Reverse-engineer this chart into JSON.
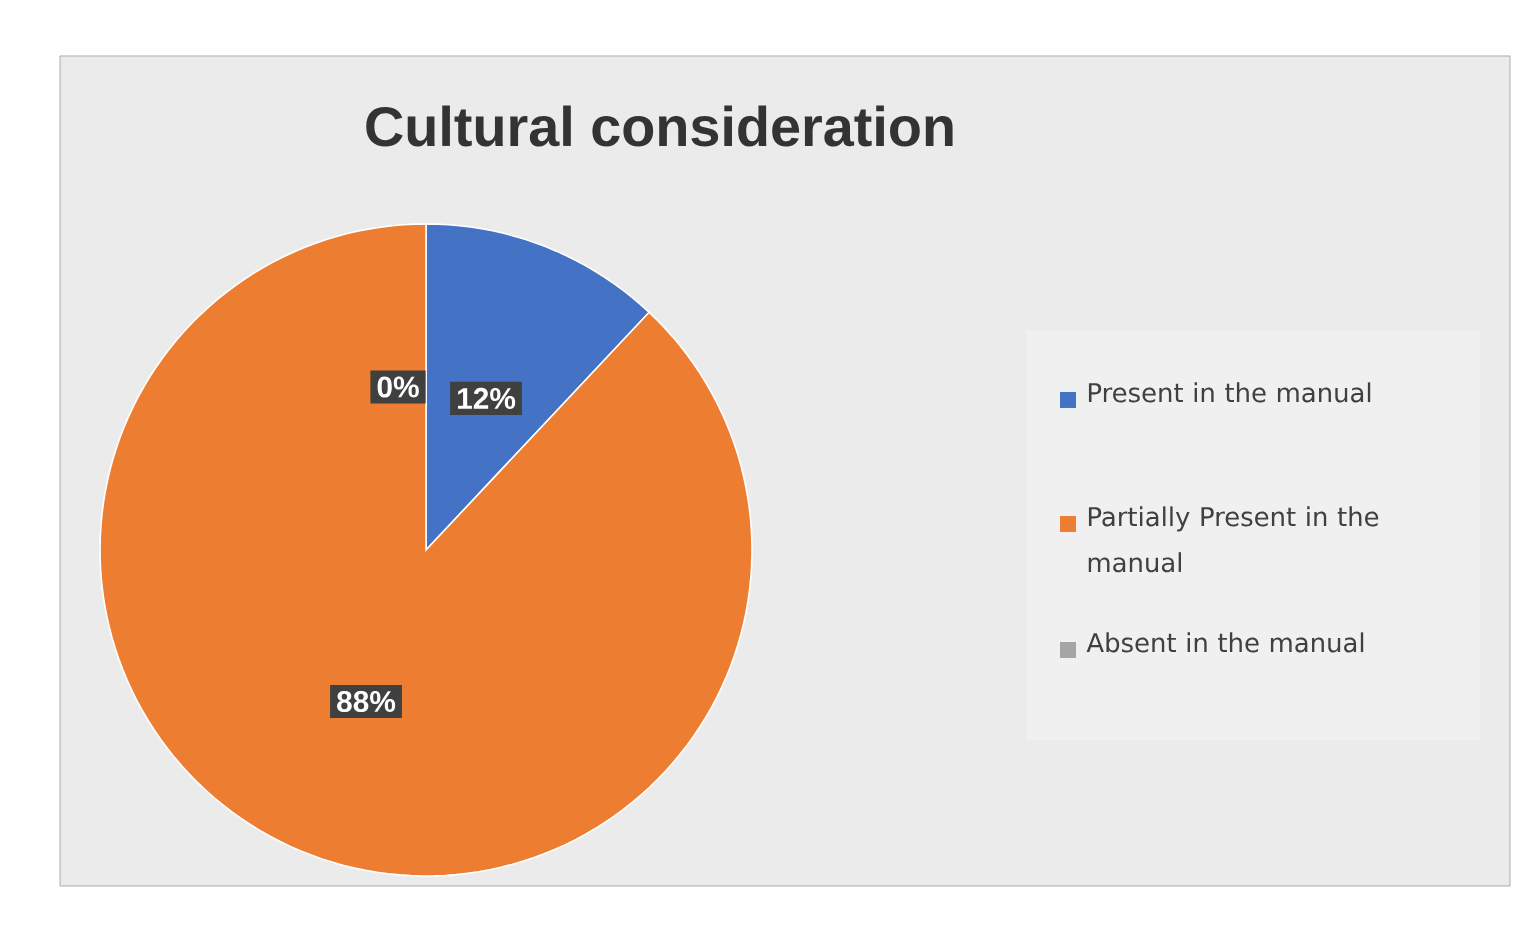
{
  "chart_data": {
    "type": "pie",
    "title": "Cultural consideration",
    "categories": [
      "Present in the manual",
      "Partially Present in the manual",
      "Absent in the manual"
    ],
    "values": [
      12,
      88,
      0
    ],
    "colors": [
      "#4472c4",
      "#ed7d31",
      "#a5a5a5"
    ],
    "value_labels": [
      "12%",
      "88%",
      "0%"
    ],
    "legend": "right"
  }
}
